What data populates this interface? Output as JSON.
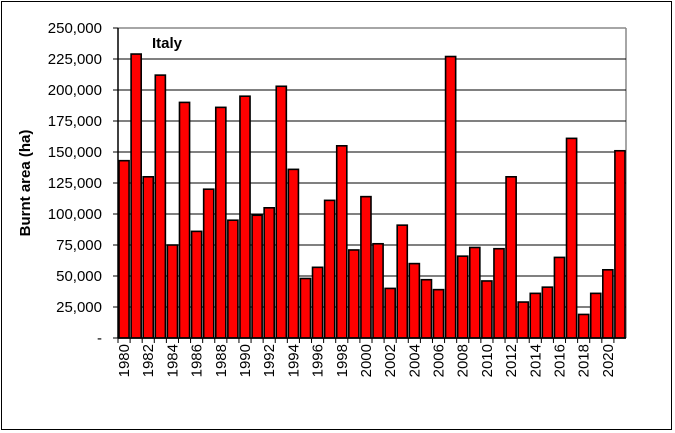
{
  "chart_data": {
    "type": "bar",
    "title": "Italy",
    "xlabel": "",
    "ylabel": "Burnt area (ha)",
    "ylim": [
      0,
      250000
    ],
    "yticks": [
      0,
      25000,
      50000,
      75000,
      100000,
      125000,
      150000,
      175000,
      200000,
      225000,
      250000
    ],
    "ytick_labels": [
      "-",
      "25,000",
      "50,000",
      "75,000",
      "100,000",
      "125,000",
      "150,000",
      "175,000",
      "200,000",
      "225,000",
      "250,000"
    ],
    "grid": true,
    "bar_color": "#ff0000",
    "categories": [
      1980,
      1981,
      1982,
      1983,
      1984,
      1985,
      1986,
      1987,
      1988,
      1989,
      1990,
      1991,
      1992,
      1993,
      1994,
      1995,
      1996,
      1997,
      1998,
      1999,
      2000,
      2001,
      2002,
      2003,
      2004,
      2005,
      2006,
      2007,
      2008,
      2009,
      2010,
      2011,
      2012,
      2013,
      2014,
      2015,
      2016,
      2017,
      2018,
      2019,
      2020,
      2021
    ],
    "xtick_labels": [
      "1980",
      "1982",
      "1984",
      "1986",
      "1988",
      "1990",
      "1992",
      "1994",
      "1996",
      "1998",
      "2000",
      "2002",
      "2004",
      "2006",
      "2008",
      "2010",
      "2012",
      "2014",
      "2016",
      "2018",
      "2020"
    ],
    "values": [
      143000,
      229000,
      130000,
      212000,
      75000,
      190000,
      86000,
      120000,
      186000,
      95000,
      195000,
      99000,
      105000,
      203000,
      136000,
      48000,
      57000,
      111000,
      155000,
      71000,
      114000,
      76000,
      40000,
      91000,
      60000,
      47000,
      39000,
      227000,
      66000,
      73000,
      46000,
      72000,
      130000,
      29000,
      36000,
      41000,
      65000,
      161000,
      19000,
      36000,
      55000,
      151000
    ]
  }
}
